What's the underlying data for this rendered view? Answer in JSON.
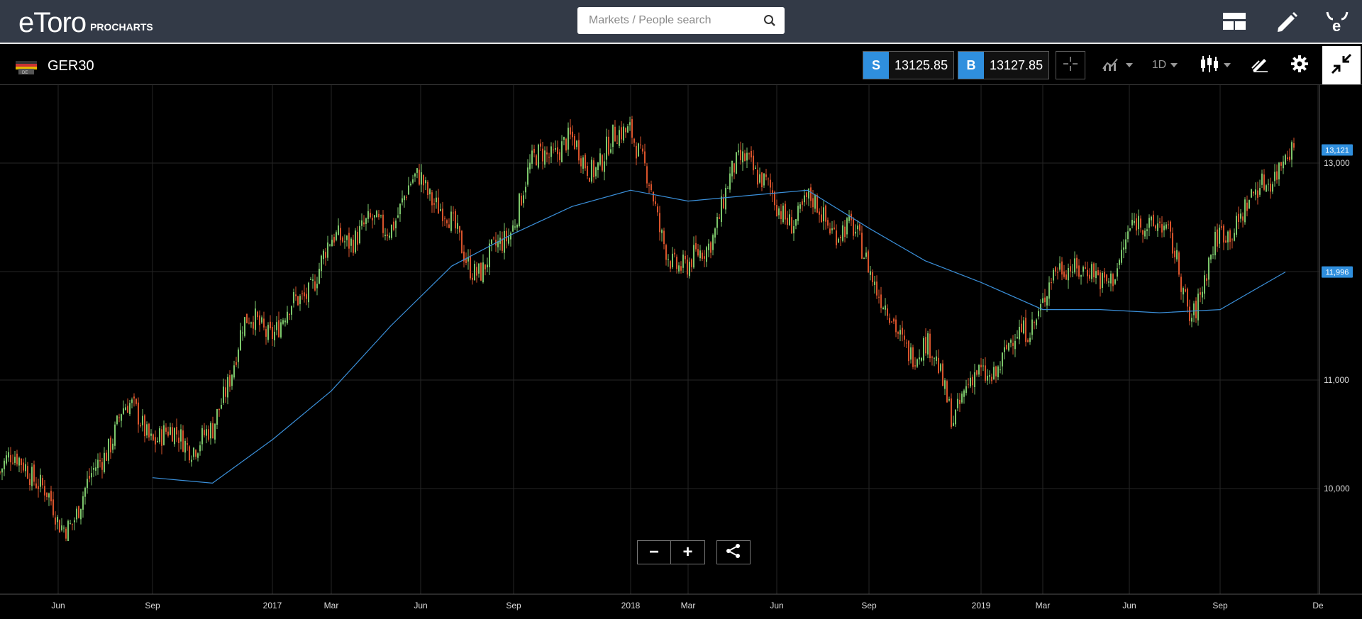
{
  "header": {
    "logo_text": "eToro",
    "logo_sub": "PROCHARTS",
    "search_placeholder": "Markets / People search",
    "icons": [
      "search-icon",
      "layout-icon",
      "pencil-icon",
      "etoro-bull-icon"
    ]
  },
  "toolbar": {
    "symbol": "GER30",
    "sell_tag": "S",
    "sell_price": "13125.85",
    "buy_tag": "B",
    "buy_price": "13127.85",
    "timeframe": "1D",
    "icons": [
      "crosshair-icon",
      "indicators-icon",
      "candlestick-icon",
      "drawing-icon",
      "gear-icon",
      "collapse-icon"
    ]
  },
  "colors": {
    "topbar": "#333a47",
    "accent_blue": "#2f8fde",
    "candle_up": "#7cc66b",
    "candle_down": "#d9532b",
    "ma_line": "#3a8fd9",
    "grid": "#2a2a2a"
  },
  "controls": {
    "zoom_out": "−",
    "zoom_in": "+"
  },
  "chart_data": {
    "type": "candlestick",
    "instrument": "GER30",
    "y_ticks": [
      "13,000",
      "11,000",
      "10,000"
    ],
    "y_tick_values": [
      13000,
      11000,
      10000
    ],
    "ylim": [
      9000,
      13600
    ],
    "x_ticks": [
      "Jun",
      "Sep",
      "2017",
      "Mar",
      "Jun",
      "Sep",
      "2018",
      "Mar",
      "Jun",
      "Sep",
      "2019",
      "Mar",
      "Jun",
      "Sep",
      "De"
    ],
    "last_price_label": "13,121",
    "last_price": 13121,
    "ma_price_label": "11,996",
    "ma_price": 11996,
    "close_path": [
      [
        "2016-05",
        10150
      ],
      [
        "2016-06",
        9700
      ],
      [
        "2016-07",
        10100
      ],
      [
        "2016-08",
        10600
      ],
      [
        "2016-09",
        10500
      ],
      [
        "2016-10",
        10600
      ],
      [
        "2016-11",
        10400
      ],
      [
        "2016-12",
        11400
      ],
      [
        "2017-01",
        11600
      ],
      [
        "2017-02",
        11800
      ],
      [
        "2017-03",
        12100
      ],
      [
        "2017-04",
        12400
      ],
      [
        "2017-05",
        12600
      ],
      [
        "2017-06",
        12800
      ],
      [
        "2017-07",
        12300
      ],
      [
        "2017-08",
        12100
      ],
      [
        "2017-09",
        12500
      ],
      [
        "2017-10",
        13000
      ],
      [
        "2017-11",
        13200
      ],
      [
        "2017-12",
        13100
      ],
      [
        "2018-01",
        13300
      ],
      [
        "2018-02",
        12300
      ],
      [
        "2018-03",
        12100
      ],
      [
        "2018-04",
        12500
      ],
      [
        "2018-05",
        13000
      ],
      [
        "2018-06",
        12600
      ],
      [
        "2018-07",
        12700
      ],
      [
        "2018-08",
        12300
      ],
      [
        "2018-09",
        12100
      ],
      [
        "2018-10",
        11500
      ],
      [
        "2018-11",
        11300
      ],
      [
        "2018-12",
        10600
      ],
      [
        "2019-01",
        11100
      ],
      [
        "2019-02",
        11400
      ],
      [
        "2019-03",
        11600
      ],
      [
        "2019-04",
        12100
      ],
      [
        "2019-05",
        12000
      ],
      [
        "2019-06",
        12300
      ],
      [
        "2019-07",
        12400
      ],
      [
        "2019-08",
        11700
      ],
      [
        "2019-09",
        12400
      ],
      [
        "2019-10",
        12500
      ],
      [
        "2019-11",
        13121
      ]
    ],
    "ma_path": [
      [
        "2016-09",
        10100
      ],
      [
        "2016-11",
        10050
      ],
      [
        "2017-01",
        10450
      ],
      [
        "2017-03",
        10900
      ],
      [
        "2017-05",
        11500
      ],
      [
        "2017-07",
        12050
      ],
      [
        "2017-09",
        12350
      ],
      [
        "2017-11",
        12600
      ],
      [
        "2018-01",
        12750
      ],
      [
        "2018-03",
        12650
      ],
      [
        "2018-05",
        12700
      ],
      [
        "2018-07",
        12750
      ],
      [
        "2018-09",
        12400
      ],
      [
        "2018-11",
        12100
      ],
      [
        "2019-01",
        11900
      ],
      [
        "2019-03",
        11650
      ],
      [
        "2019-05",
        11650
      ],
      [
        "2019-07",
        11620
      ],
      [
        "2019-09",
        11650
      ],
      [
        "2019-11",
        11996
      ]
    ]
  }
}
